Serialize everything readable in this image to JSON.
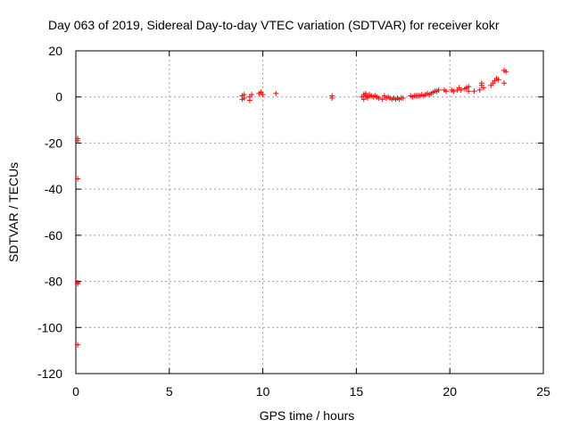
{
  "chart_data": {
    "type": "scatter",
    "title": "Day 063 of 2019, Sidereal Day-to-day VTEC variation (SDTVAR) for receiver kokr",
    "xlabel": "GPS time / hours",
    "ylabel": "SDTVAR / TECUs",
    "xlim": [
      0,
      25
    ],
    "ylim": [
      -120,
      20
    ],
    "xticks": [
      0,
      5,
      10,
      15,
      20,
      25
    ],
    "yticks": [
      -120,
      -100,
      -80,
      -60,
      -40,
      -20,
      0,
      20
    ],
    "grid": true,
    "marker": "plus",
    "color": "#ff0000",
    "points": [
      [
        0.1,
        -18
      ],
      [
        0.1,
        -19
      ],
      [
        0.1,
        -35.5
      ],
      [
        0.1,
        -80.5
      ],
      [
        0.1,
        -81
      ],
      [
        0.1,
        -107.5
      ],
      [
        8.9,
        0.5
      ],
      [
        8.9,
        -1
      ],
      [
        9.0,
        1
      ],
      [
        9.0,
        -0.5
      ],
      [
        9.3,
        0
      ],
      [
        9.3,
        -1.5
      ],
      [
        9.4,
        1
      ],
      [
        9.8,
        1.5
      ],
      [
        9.9,
        2
      ],
      [
        10.0,
        1
      ],
      [
        10.7,
        1.5
      ],
      [
        13.7,
        0.5
      ],
      [
        13.7,
        -0.5
      ],
      [
        15.3,
        0
      ],
      [
        15.4,
        1
      ],
      [
        15.4,
        -1
      ],
      [
        15.5,
        0.5
      ],
      [
        15.5,
        1.5
      ],
      [
        15.6,
        0
      ],
      [
        15.6,
        -0.5
      ],
      [
        15.7,
        1
      ],
      [
        15.8,
        0.5
      ],
      [
        15.9,
        0
      ],
      [
        16.0,
        0.5
      ],
      [
        16.1,
        0
      ],
      [
        16.2,
        -0.5
      ],
      [
        16.4,
        -1
      ],
      [
        16.5,
        0.5
      ],
      [
        16.6,
        -0.5
      ],
      [
        16.7,
        0
      ],
      [
        16.8,
        -0.5
      ],
      [
        16.9,
        -1
      ],
      [
        17.0,
        -0.5
      ],
      [
        17.1,
        -1
      ],
      [
        17.2,
        -0.5
      ],
      [
        17.3,
        -1
      ],
      [
        17.4,
        -0.5
      ],
      [
        17.5,
        -0.5
      ],
      [
        17.9,
        0.5
      ],
      [
        18.0,
        0
      ],
      [
        18.1,
        0.5
      ],
      [
        18.2,
        0.5
      ],
      [
        18.3,
        0.5
      ],
      [
        18.4,
        0.5
      ],
      [
        18.5,
        1
      ],
      [
        18.6,
        0.5
      ],
      [
        18.7,
        1
      ],
      [
        18.8,
        1.5
      ],
      [
        18.9,
        1
      ],
      [
        19.0,
        1.5
      ],
      [
        19.1,
        2
      ],
      [
        19.2,
        2.5
      ],
      [
        19.3,
        2.5
      ],
      [
        19.4,
        3
      ],
      [
        19.7,
        3
      ],
      [
        19.8,
        2.5
      ],
      [
        20.1,
        3
      ],
      [
        20.2,
        2.5
      ],
      [
        20.4,
        3
      ],
      [
        20.5,
        4
      ],
      [
        20.6,
        3
      ],
      [
        20.8,
        3.5
      ],
      [
        20.9,
        4
      ],
      [
        21.0,
        2.5
      ],
      [
        21.0,
        4.5
      ],
      [
        21.3,
        2.5
      ],
      [
        21.6,
        3
      ],
      [
        21.7,
        5
      ],
      [
        21.7,
        6
      ],
      [
        21.8,
        4
      ],
      [
        22.2,
        5
      ],
      [
        22.3,
        6
      ],
      [
        22.4,
        7
      ],
      [
        22.5,
        8
      ],
      [
        22.6,
        7.5
      ],
      [
        22.9,
        11.5
      ],
      [
        22.9,
        6
      ],
      [
        23.0,
        11
      ]
    ]
  }
}
